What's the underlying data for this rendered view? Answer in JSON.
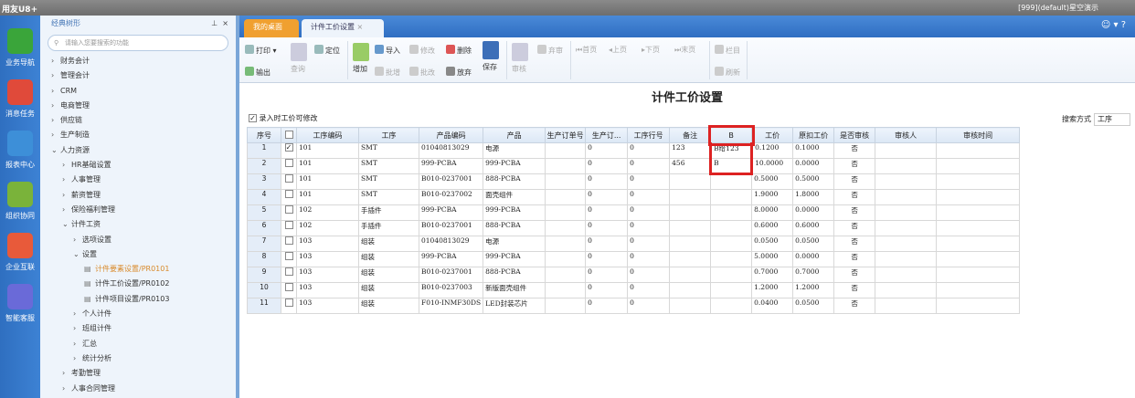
{
  "app": {
    "logo": "用友U8+",
    "account": "[999](default)星空演示"
  },
  "iconbar": [
    {
      "label": "业务导航",
      "color": "#3aa53a"
    },
    {
      "label": "消息任务",
      "color": "#e04a3a"
    },
    {
      "label": "报表中心",
      "color": "#3d8fd8"
    },
    {
      "label": "组织协同",
      "color": "#7ab33a"
    },
    {
      "label": "企业互联",
      "color": "#e85a3a"
    },
    {
      "label": "智能客服",
      "color": "#6a6ad8"
    }
  ],
  "nav": {
    "title": "经典树形",
    "pin": "⊥",
    "close": "×",
    "search_placeholder": "请输入您要搜索的功能",
    "items": [
      {
        "label": "财务会计",
        "level": 0,
        "arrow": "›"
      },
      {
        "label": "管理会计",
        "level": 0,
        "arrow": "›"
      },
      {
        "label": "CRM",
        "level": 0,
        "arrow": "›"
      },
      {
        "label": "电商管理",
        "level": 0,
        "arrow": "›"
      },
      {
        "label": "供应链",
        "level": 0,
        "arrow": "›"
      },
      {
        "label": "生产制造",
        "level": 0,
        "arrow": "›"
      },
      {
        "label": "人力资源",
        "level": 0,
        "arrow": "⌄"
      },
      {
        "label": "HR基础设置",
        "level": 1,
        "arrow": "›"
      },
      {
        "label": "人事管理",
        "level": 1,
        "arrow": "›"
      },
      {
        "label": "薪资管理",
        "level": 1,
        "arrow": "›"
      },
      {
        "label": "保险福利管理",
        "level": 1,
        "arrow": "›"
      },
      {
        "label": "计件工资",
        "level": 1,
        "arrow": "⌄"
      },
      {
        "label": "选项设置",
        "level": 2,
        "arrow": "›"
      },
      {
        "label": "设置",
        "level": 2,
        "arrow": "⌄"
      },
      {
        "label": "计件要素设置/PR0101",
        "level": 3,
        "doc": true,
        "highlight": true
      },
      {
        "label": "计件工价设置/PR0102",
        "level": 3,
        "doc": true
      },
      {
        "label": "计件项目设置/PR0103",
        "level": 3,
        "doc": true
      },
      {
        "label": "个人计件",
        "level": 2,
        "arrow": "›"
      },
      {
        "label": "班组计件",
        "level": 2,
        "arrow": "›"
      },
      {
        "label": "汇总",
        "level": 2,
        "arrow": "›"
      },
      {
        "label": "统计分析",
        "level": 2,
        "arrow": "›"
      },
      {
        "label": "考勤管理",
        "level": 1,
        "arrow": "›"
      },
      {
        "label": "人事合同管理",
        "level": 1,
        "arrow": "›"
      }
    ]
  },
  "tabs": {
    "home": "我的桌面",
    "current": "计件工价设置",
    "close": "×"
  },
  "toolbar": {
    "print": "打印",
    "export": "输出",
    "query": "查询",
    "locate": "定位",
    "add": "增加",
    "import": "导入",
    "modify": "修改",
    "batch_add": "批增",
    "batch_modify": "批改",
    "delete": "删除",
    "discard": "放弃",
    "save": "保存",
    "audit": "审核",
    "unaudit": "弃审",
    "first": "首页",
    "prev": "上页",
    "next": "下页",
    "last": "末页",
    "columns": "栏目",
    "refresh": "刷新"
  },
  "page": {
    "title": "计件工价设置",
    "edit_checkbox": "录入时工价可修改",
    "search_mode_label": "搜索方式",
    "search_mode_value": "工序"
  },
  "grid": {
    "columns": [
      "序号",
      "",
      "工序编码",
      "工序",
      "产品编码",
      "产品",
      "生产订单号",
      "生产订...",
      "工序行号",
      "备注",
      "B",
      "工价",
      "原扣工价",
      "是否审核",
      "审核人",
      "审核时间"
    ],
    "rows": [
      [
        "1",
        true,
        "101",
        "SMT",
        "01040813029",
        "电源",
        "",
        "0",
        "0",
        "123",
        "B给123",
        "0.1200",
        "0.1000",
        "否",
        "",
        ""
      ],
      [
        "2",
        false,
        "101",
        "SMT",
        "999-PCBA",
        "999-PCBA",
        "",
        "0",
        "0",
        "456",
        "B",
        "10.0000",
        "0.0000",
        "否",
        "",
        ""
      ],
      [
        "3",
        false,
        "101",
        "SMT",
        "B010-0237001",
        "888-PCBA",
        "",
        "0",
        "0",
        "",
        "",
        "0.5000",
        "0.5000",
        "否",
        "",
        ""
      ],
      [
        "4",
        false,
        "101",
        "SMT",
        "B010-0237002",
        "面壳组件",
        "",
        "0",
        "0",
        "",
        "",
        "1.9000",
        "1.8000",
        "否",
        "",
        ""
      ],
      [
        "5",
        false,
        "102",
        "手插件",
        "999-PCBA",
        "999-PCBA",
        "",
        "0",
        "0",
        "",
        "",
        "8.0000",
        "0.0000",
        "否",
        "",
        ""
      ],
      [
        "6",
        false,
        "102",
        "手插件",
        "B010-0237001",
        "888-PCBA",
        "",
        "0",
        "0",
        "",
        "",
        "0.6000",
        "0.6000",
        "否",
        "",
        ""
      ],
      [
        "7",
        false,
        "103",
        "组装",
        "01040813029",
        "电源",
        "",
        "0",
        "0",
        "",
        "",
        "0.0500",
        "0.0500",
        "否",
        "",
        ""
      ],
      [
        "8",
        false,
        "103",
        "组装",
        "999-PCBA",
        "999-PCBA",
        "",
        "0",
        "0",
        "",
        "",
        "5.0000",
        "0.0000",
        "否",
        "",
        ""
      ],
      [
        "9",
        false,
        "103",
        "组装",
        "B010-0237001",
        "888-PCBA",
        "",
        "0",
        "0",
        "",
        "",
        "0.7000",
        "0.7000",
        "否",
        "",
        ""
      ],
      [
        "10",
        false,
        "103",
        "组装",
        "B010-0237003",
        "新版面壳组件",
        "",
        "0",
        "0",
        "",
        "",
        "1.2000",
        "1.2000",
        "否",
        "",
        ""
      ],
      [
        "11",
        false,
        "103",
        "组装",
        "F010-INMF30DS",
        "LED封装芯片",
        "",
        "0",
        "0",
        "",
        "",
        "0.0400",
        "0.0500",
        "否",
        "",
        ""
      ]
    ]
  },
  "colors": {
    "accent": "#2f6ec2",
    "home_tab": "#f0a030",
    "highlight_border": "#d22222"
  }
}
